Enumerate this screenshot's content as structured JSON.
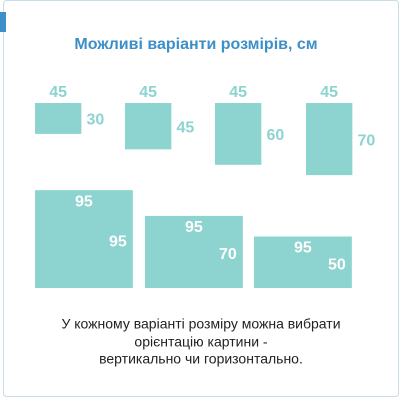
{
  "title": "Можливі варіанти розмірів, см",
  "sizes": [
    {
      "width": 45,
      "height": 30
    },
    {
      "width": 45,
      "height": 45
    },
    {
      "width": 45,
      "height": 60
    },
    {
      "width": 45,
      "height": 70
    },
    {
      "width": 95,
      "height": 95
    },
    {
      "width": 95,
      "height": 70
    },
    {
      "width": 95,
      "height": 50
    }
  ],
  "note": [
    "У кожному варіанті розміру можна вибрати",
    "орієнтацію картини -",
    "вертикально чи горизонтально."
  ]
}
